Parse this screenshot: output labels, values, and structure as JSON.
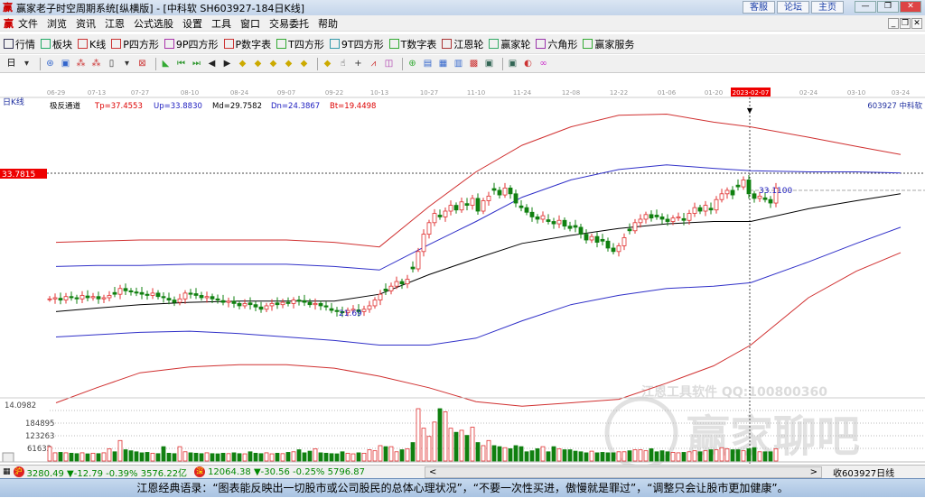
{
  "window": {
    "title": "赢家老子时空周期系统[纵横版] - [中科软  SH603927-184日K线]",
    "links": [
      "客服",
      "论坛",
      "主页"
    ],
    "controls": [
      "—",
      "❐",
      "✕"
    ]
  },
  "menu": {
    "items": [
      "文件",
      "浏览",
      "资讯",
      "江恩",
      "公式选股",
      "设置",
      "工具",
      "窗口",
      "交易委托",
      "帮助"
    ],
    "mdi_controls": [
      "_",
      "❐",
      "✕"
    ]
  },
  "toolbar1": [
    {
      "label": "行情",
      "icon": "keyboard-icon",
      "color": "#335"
    },
    {
      "label": "板块",
      "icon": "grid-icon",
      "color": "#2a6"
    },
    {
      "label": "K线",
      "icon": "kline-icon",
      "color": "#c33"
    },
    {
      "label": "P四方形",
      "icon": "PS",
      "color": "#c33"
    },
    {
      "label": "9P四方形",
      "icon": "P9",
      "color": "#a3a"
    },
    {
      "label": "P数字表",
      "icon": "PN",
      "color": "#c33"
    },
    {
      "label": "T四方形",
      "icon": "TS",
      "color": "#3a3"
    },
    {
      "label": "9T四方形",
      "icon": "T9",
      "color": "#39a"
    },
    {
      "label": "T数字表",
      "icon": "TN",
      "color": "#3a3"
    },
    {
      "label": "江恩轮",
      "icon": "wheel-icon",
      "color": "#a33"
    },
    {
      "label": "赢家轮",
      "icon": "wheel-icon",
      "color": "#3a6"
    },
    {
      "label": "六角形",
      "icon": "hexagon-icon",
      "color": "#93a"
    },
    {
      "label": "赢家服务",
      "icon": "dollar-icon",
      "color": "#3a3"
    }
  ],
  "toolbar2": {
    "period": "日",
    "glyphs": [
      "▾",
      "⊛",
      "▣",
      "⁂",
      "⁂",
      "▯",
      "▾",
      "⊠",
      "◣",
      "⏮",
      "⏭",
      "◀",
      "▶",
      "◆",
      "◆",
      "◆",
      "◆",
      "◆",
      "◆",
      "☝",
      "+",
      "⩘",
      "◫",
      "⊕",
      "▤",
      "▦",
      "▥",
      "▩",
      "▣",
      "▣",
      "◐",
      "∞"
    ]
  },
  "chart": {
    "period_label": "日K线",
    "indicator_name": "极反通道",
    "params": {
      "tp": "Tp=37.4553",
      "up": "Up=33.8830",
      "md": "Md=29.7582",
      "dn": "Dn=24.3867",
      "bt": "Bt=19.4498"
    },
    "stock_label": "603927 中科软",
    "cursor_date": "2023-02-07",
    "price_marker": "33.7815",
    "low_label": "21.69",
    "last_label": "33.1100",
    "bottom_price": "14.0982",
    "volume_ticks": [
      "184895",
      "123263",
      "61632"
    ],
    "watermark_text": "江恩工具软件  QQ:100800360",
    "watermark_logo": "赢家聊吧",
    "watermark_url": "liaoba.vip6300.com",
    "colors": {
      "up": "#e03030",
      "down": "#108010",
      "band_outer": "#d03030",
      "band_inner": "#3030c8",
      "mid": "#000000"
    }
  },
  "chart_data": {
    "type": "candlestick",
    "x_ticks": [
      "06-29",
      "07-13",
      "07-27",
      "08-10",
      "08-24",
      "09-07",
      "09-22",
      "10-13",
      "10-27",
      "11-10",
      "11-24",
      "12-08",
      "12-22",
      "01-06",
      "01-20",
      "2023-02-07",
      "02-24",
      "03-10",
      "03-24"
    ],
    "closes": [
      22.9,
      23.0,
      22.8,
      23.1,
      23.0,
      22.9,
      23.2,
      23.0,
      23.1,
      22.9,
      23.0,
      23.2,
      23.3,
      23.8,
      23.6,
      23.5,
      23.4,
      23.3,
      23.2,
      23.4,
      23.1,
      23.0,
      22.8,
      22.6,
      22.9,
      23.4,
      23.3,
      23.2,
      23.0,
      23.1,
      22.9,
      22.8,
      22.6,
      22.7,
      22.5,
      22.3,
      22.5,
      22.4,
      22.2,
      22.0,
      22.3,
      22.5,
      22.4,
      22.6,
      22.5,
      22.8,
      22.7,
      22.6,
      22.4,
      22.5,
      22.3,
      22.2,
      21.9,
      21.8,
      21.7,
      21.9,
      22.0,
      21.8,
      22.0,
      22.3,
      22.8,
      23.3,
      23.6,
      24.0,
      24.4,
      24.2,
      24.6,
      25.5,
      27.0,
      28.5,
      29.5,
      30.3,
      30.0,
      30.5,
      31.0,
      30.6,
      31.3,
      31.0,
      31.6,
      30.5,
      31.4,
      31.8,
      32.3,
      31.9,
      32.5,
      32.0,
      31.2,
      30.8,
      30.4,
      30.0,
      29.8,
      30.1,
      29.6,
      29.4,
      29.7,
      29.2,
      29.0,
      29.1,
      28.5,
      28.0,
      28.3,
      27.8,
      27.9,
      27.3,
      27.0,
      27.5,
      28.2,
      28.8,
      29.5,
      29.8,
      30.2,
      29.9,
      30.0,
      29.8,
      29.6,
      29.9,
      30.0,
      29.7,
      30.3,
      30.8,
      30.5,
      31.0,
      30.6,
      31.5,
      32.0,
      32.3,
      31.9,
      32.6,
      33.2,
      32.0,
      31.6,
      31.8,
      31.5,
      31.2,
      32.5
    ],
    "volumes": [
      70000,
      40000,
      42000,
      40000,
      38000,
      36000,
      40000,
      35000,
      38000,
      36000,
      40000,
      60000,
      45000,
      100000,
      55000,
      50000,
      45000,
      40000,
      42000,
      38000,
      36000,
      70000,
      38000,
      36000,
      70000,
      45000,
      40000,
      38000,
      36000,
      40000,
      36000,
      35000,
      38000,
      36000,
      40000,
      36000,
      35000,
      45000,
      38000,
      36000,
      40000,
      35000,
      38000,
      36000,
      42000,
      45000,
      55000,
      40000,
      48000,
      60000,
      40000,
      38000,
      36000,
      35000,
      45000,
      38000,
      35000,
      40000,
      38000,
      55000,
      50000,
      75000,
      70000,
      70000,
      45000,
      55000,
      60000,
      90000,
      280000,
      160000,
      120000,
      190000,
      280000,
      240000,
      160000,
      140000,
      150000,
      125000,
      165000,
      90000,
      75000,
      100000,
      75000,
      70000,
      65000,
      60000,
      75000,
      70000,
      45000,
      50000,
      60000,
      70000,
      45000,
      70000,
      60000,
      55000,
      55000,
      48000,
      45000,
      40000,
      48000,
      40000,
      42000,
      40000,
      40000,
      45000,
      45000,
      50000,
      55000,
      55000,
      50000,
      60000,
      45000,
      50000,
      45000,
      42000,
      40000,
      42000,
      45000,
      50000,
      45000,
      50000,
      55000,
      55000,
      65000,
      60000,
      55000,
      55000,
      50000,
      60000,
      65000,
      45000,
      45000,
      45000,
      60000
    ],
    "bands": [
      {
        "name": "Tp",
        "values": [
          27.8,
          27.9,
          28.0,
          28.0,
          28.0,
          28.0,
          27.8,
          27.4,
          30.9,
          33.9,
          36.2,
          37.8,
          38.8,
          38.9,
          38.2,
          37.8,
          36.9,
          36.1,
          35.4
        ]
      },
      {
        "name": "Up",
        "values": [
          25.7,
          25.8,
          25.8,
          25.9,
          25.9,
          25.9,
          25.7,
          25.4,
          27.6,
          29.6,
          31.7,
          33.2,
          34.1,
          34.5,
          34.2,
          34.0,
          33.9,
          33.9,
          33.8
        ]
      },
      {
        "name": "Md",
        "values": [
          21.8,
          22.1,
          22.4,
          22.6,
          22.7,
          22.7,
          22.7,
          23.3,
          25.0,
          26.4,
          27.7,
          28.4,
          29.0,
          29.4,
          29.6,
          29.6,
          30.7,
          31.4,
          32.0
        ]
      },
      {
        "name": "Dn",
        "values": [
          19.6,
          19.8,
          20.0,
          20.1,
          19.9,
          19.6,
          19.3,
          18.9,
          18.9,
          19.5,
          21.0,
          22.4,
          23.2,
          23.8,
          24.0,
          24.3,
          26.1,
          27.7,
          29.1
        ]
      },
      {
        "name": "Bt",
        "values": [
          13.9,
          15.2,
          16.5,
          17.0,
          17.2,
          17.2,
          16.9,
          16.2,
          15.2,
          14.0,
          13.6,
          13.9,
          14.2,
          15.6,
          17.1,
          18.9,
          23.0,
          25.3,
          26.9
        ]
      }
    ]
  },
  "status": {
    "sh_badge": "沪",
    "sh_quote": "3280.49 ▼-12.79 -0.39% 3576.22亿",
    "sz_badge": "深",
    "sz_quote": "12064.38 ▼-30.56 -0.25% 5796.87",
    "scroll_left": "<",
    "scroll_right": ">",
    "current": "收603927日线"
  },
  "quote_bar": "江恩经典语录：“图表能反映出一切股市或公司股民的总体心理状况”，“不要一次性买进，傲慢就是罪过”，“调整只会让股市更加健康”。"
}
